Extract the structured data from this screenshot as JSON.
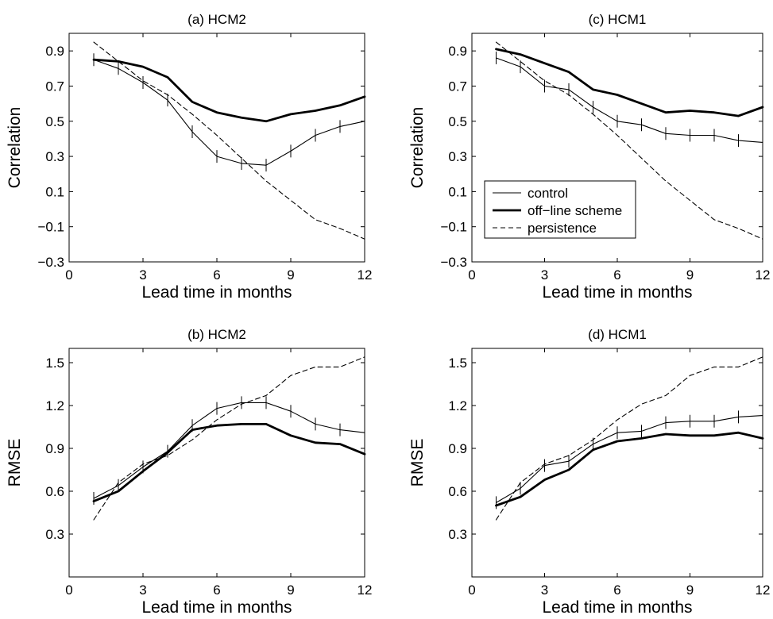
{
  "chart_data": [
    {
      "type": "line",
      "title": "(a) HCM2",
      "xlabel": "Lead time in months",
      "ylabel": "Correlation",
      "xlim": [
        0,
        12
      ],
      "ylim": [
        -0.3,
        1.0
      ],
      "xticks": [
        "0",
        "3",
        "6",
        "9",
        "12"
      ],
      "yticks": [
        "0.9",
        "0.7",
        "0.5",
        "0.3",
        "0.1",
        "−0.1",
        "−0.3"
      ],
      "grid": false,
      "x": [
        1,
        2,
        3,
        4,
        5,
        6,
        7,
        8,
        9,
        10,
        11,
        12
      ],
      "series": [
        {
          "style": "thin",
          "error_ticks": true,
          "values": [
            0.85,
            0.8,
            0.72,
            0.62,
            0.44,
            0.3,
            0.26,
            0.25,
            0.33,
            0.42,
            0.47,
            0.5
          ]
        },
        {
          "style": "bold",
          "error_ticks": false,
          "values": [
            0.85,
            0.84,
            0.81,
            0.75,
            0.61,
            0.55,
            0.52,
            0.5,
            0.54,
            0.56,
            0.59,
            0.64
          ]
        },
        {
          "style": "dashed",
          "error_ticks": false,
          "values": [
            0.95,
            0.84,
            0.73,
            0.65,
            0.54,
            0.42,
            0.29,
            0.16,
            0.05,
            -0.06,
            -0.11,
            -0.17
          ]
        }
      ]
    },
    {
      "type": "line",
      "title": "(c) HCM1",
      "xlabel": "Lead time in months",
      "ylabel": "Correlation",
      "xlim": [
        0,
        12
      ],
      "ylim": [
        -0.3,
        1.0
      ],
      "xticks": [
        "0",
        "3",
        "6",
        "9",
        "12"
      ],
      "yticks": [
        "0.9",
        "0.7",
        "0.5",
        "0.3",
        "0.1",
        "−0.1",
        "−0.3"
      ],
      "grid": false,
      "legend_position": "center-left",
      "x": [
        1,
        2,
        3,
        4,
        5,
        6,
        7,
        8,
        9,
        10,
        11,
        12
      ],
      "series": [
        {
          "name": "control",
          "style": "thin",
          "error_ticks": true,
          "values": [
            0.86,
            0.81,
            0.7,
            0.68,
            0.58,
            0.5,
            0.48,
            0.43,
            0.42,
            0.42,
            0.39,
            0.38
          ]
        },
        {
          "name": "off−line scheme",
          "style": "bold",
          "error_ticks": false,
          "values": [
            0.91,
            0.88,
            0.83,
            0.78,
            0.68,
            0.65,
            0.6,
            0.55,
            0.56,
            0.55,
            0.53,
            0.58
          ]
        },
        {
          "name": "persistence",
          "style": "dashed",
          "error_ticks": false,
          "values": [
            0.95,
            0.84,
            0.73,
            0.65,
            0.54,
            0.42,
            0.29,
            0.16,
            0.05,
            -0.06,
            -0.11,
            -0.17
          ]
        }
      ]
    },
    {
      "type": "line",
      "title": "(b) HCM2",
      "xlabel": "Lead time in months",
      "ylabel": "RMSE",
      "xlim": [
        0,
        12
      ],
      "ylim": [
        0.0,
        1.6
      ],
      "xticks": [
        "0",
        "3",
        "6",
        "9",
        "12"
      ],
      "yticks": [
        "1.5",
        "1.2",
        "0.9",
        "0.6",
        "0.3"
      ],
      "grid": false,
      "x": [
        1,
        2,
        3,
        4,
        5,
        6,
        7,
        8,
        9,
        10,
        11,
        12
      ],
      "series": [
        {
          "style": "thin",
          "error_ticks": true,
          "values": [
            0.55,
            0.64,
            0.77,
            0.88,
            1.06,
            1.18,
            1.22,
            1.22,
            1.16,
            1.07,
            1.03,
            1.01
          ]
        },
        {
          "style": "bold",
          "error_ticks": false,
          "values": [
            0.53,
            0.6,
            0.74,
            0.87,
            1.03,
            1.06,
            1.07,
            1.07,
            0.99,
            0.94,
            0.93,
            0.86
          ]
        },
        {
          "style": "dashed",
          "error_ticks": false,
          "values": [
            0.4,
            0.66,
            0.79,
            0.85,
            0.96,
            1.1,
            1.21,
            1.27,
            1.41,
            1.47,
            1.47,
            1.54
          ]
        }
      ]
    },
    {
      "type": "line",
      "title": "(d) HCM1",
      "xlabel": "Lead time in months",
      "ylabel": "RMSE",
      "xlim": [
        0,
        12
      ],
      "ylim": [
        0.0,
        1.6
      ],
      "xticks": [
        "0",
        "3",
        "6",
        "9",
        "12"
      ],
      "yticks": [
        "1.5",
        "1.2",
        "0.9",
        "0.6",
        "0.3"
      ],
      "grid": false,
      "x": [
        1,
        2,
        3,
        4,
        5,
        6,
        7,
        8,
        9,
        10,
        11,
        12
      ],
      "series": [
        {
          "style": "thin",
          "error_ticks": true,
          "values": [
            0.52,
            0.62,
            0.78,
            0.81,
            0.93,
            1.01,
            1.02,
            1.08,
            1.09,
            1.09,
            1.12,
            1.13
          ]
        },
        {
          "style": "bold",
          "error_ticks": false,
          "values": [
            0.5,
            0.56,
            0.68,
            0.75,
            0.89,
            0.95,
            0.97,
            1.0,
            0.99,
            0.99,
            1.01,
            0.97
          ]
        },
        {
          "style": "dashed",
          "error_ticks": false,
          "values": [
            0.4,
            0.66,
            0.79,
            0.85,
            0.96,
            1.1,
            1.21,
            1.27,
            1.41,
            1.47,
            1.47,
            1.54
          ]
        }
      ]
    }
  ]
}
